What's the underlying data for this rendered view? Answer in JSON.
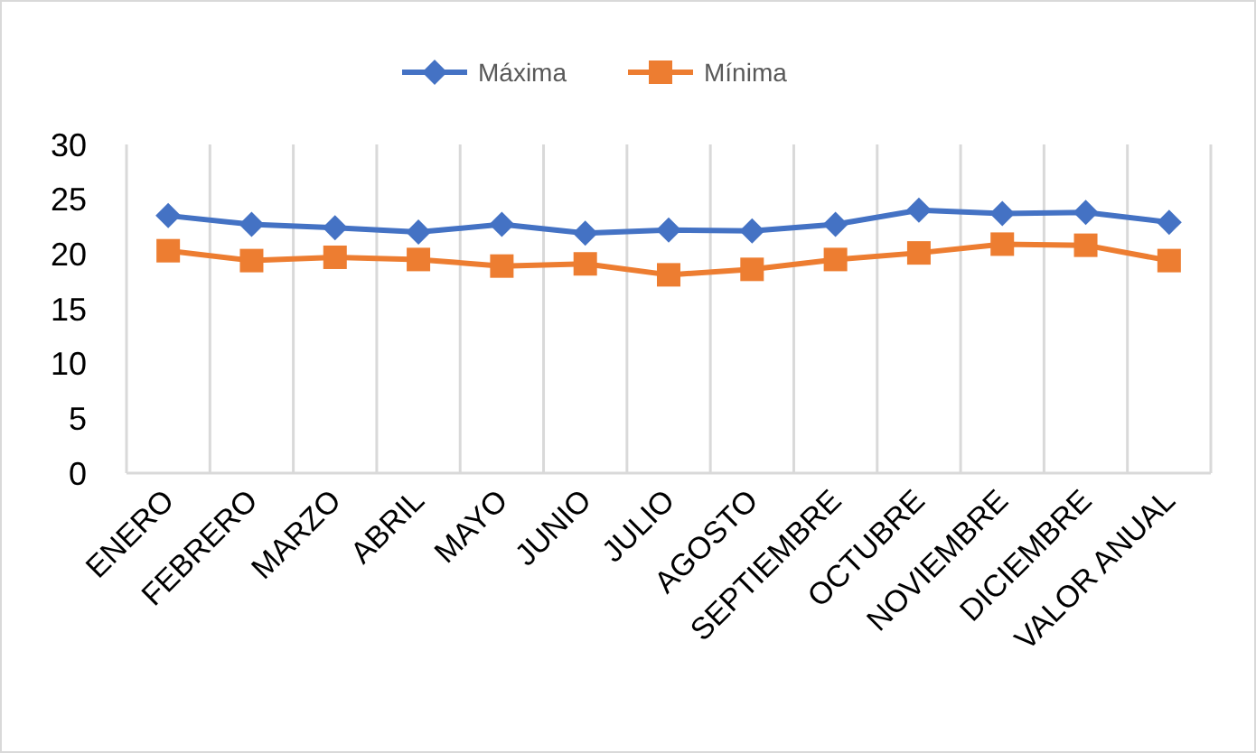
{
  "chart_data": {
    "type": "line",
    "categories": [
      "ENERO",
      "FEBRERO",
      "MARZO",
      "ABRIL",
      "MAYO",
      "JUNIO",
      "JULIO",
      "AGOSTO",
      "SEPTIEMBRE",
      "OCTUBRE",
      "NOVIEMBRE",
      "DICIEMBRE",
      "VALOR ANUAL"
    ],
    "series": [
      {
        "name": "Máxima",
        "color": "#4472c4",
        "marker": "diamond",
        "values": [
          23.5,
          22.7,
          22.4,
          22.0,
          22.7,
          21.9,
          22.2,
          22.1,
          22.7,
          24.0,
          23.7,
          23.8,
          22.9
        ]
      },
      {
        "name": "Mínima",
        "color": "#ed7d31",
        "marker": "square",
        "values": [
          20.3,
          19.4,
          19.7,
          19.5,
          18.9,
          19.1,
          18.1,
          18.6,
          19.5,
          20.1,
          20.9,
          20.8,
          19.4
        ]
      }
    ],
    "ylim": [
      0,
      30
    ],
    "yticks": [
      0,
      5,
      10,
      15,
      20,
      25,
      30
    ],
    "grid": "x",
    "legend": "top"
  }
}
